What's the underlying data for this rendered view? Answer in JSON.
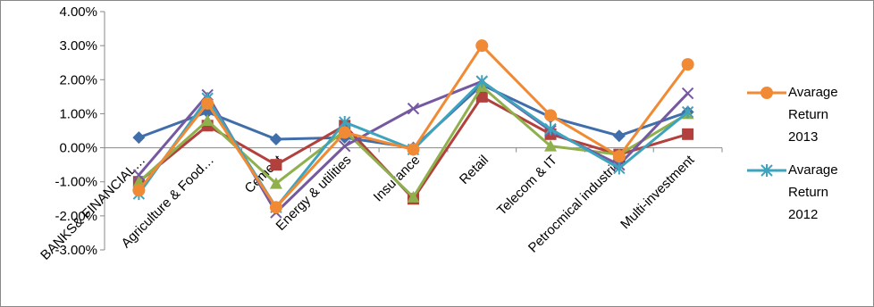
{
  "chart_data": {
    "type": "line",
    "categories": [
      "BANKS& FINANCIAL…",
      "Agriculture & Food…",
      "Cement",
      "Energy & utilities",
      "Insurance",
      "Retail",
      "Telecom & IT",
      "Petrocmical industries",
      "Multi-investment"
    ],
    "ylim": [
      -3,
      4
    ],
    "yticks": [
      {
        "value": -3,
        "label": "-3.00%"
      },
      {
        "value": -2,
        "label": "-2.00%"
      },
      {
        "value": -1,
        "label": "-1.00%"
      },
      {
        "value": 0,
        "label": "0.00%"
      },
      {
        "value": 1,
        "label": "1.00%"
      },
      {
        "value": 2,
        "label": "2.00%"
      },
      {
        "value": 3,
        "label": "3.00%"
      },
      {
        "value": 4,
        "label": "4.00%"
      }
    ],
    "grid": false,
    "legend": "right",
    "series": [
      {
        "color": "#3f6eaa",
        "marker": "diamond",
        "values": [
          0.3,
          1.05,
          0.25,
          0.3,
          0.0,
          1.85,
          0.9,
          0.35,
          1.05
        ]
      },
      {
        "color": "#b2403d",
        "marker": "square",
        "values": [
          -1.0,
          0.65,
          -0.5,
          0.65,
          -1.5,
          1.5,
          0.4,
          -0.2,
          0.4
        ]
      },
      {
        "color": "#8fb04c",
        "marker": "triangle",
        "values": [
          -1.0,
          0.8,
          -1.05,
          0.5,
          -1.45,
          1.8,
          0.05,
          -0.2,
          1.0
        ]
      },
      {
        "color": "#7559a0",
        "marker": "x",
        "values": [
          -0.8,
          1.55,
          -1.9,
          0.05,
          1.15,
          1.95,
          0.5,
          -0.5,
          1.6
        ]
      },
      {
        "name": "Avarage Return 2012",
        "color": "#3ea3bd",
        "marker": "star",
        "values": [
          -1.35,
          1.45,
          -1.75,
          0.75,
          -0.05,
          1.95,
          0.55,
          -0.6,
          1.05
        ]
      },
      {
        "name": "Avarage Return 2013",
        "color": "#f08a34",
        "marker": "circle",
        "values": [
          -1.25,
          1.3,
          -1.75,
          0.45,
          -0.05,
          3.0,
          0.95,
          -0.25,
          2.45
        ]
      }
    ]
  }
}
